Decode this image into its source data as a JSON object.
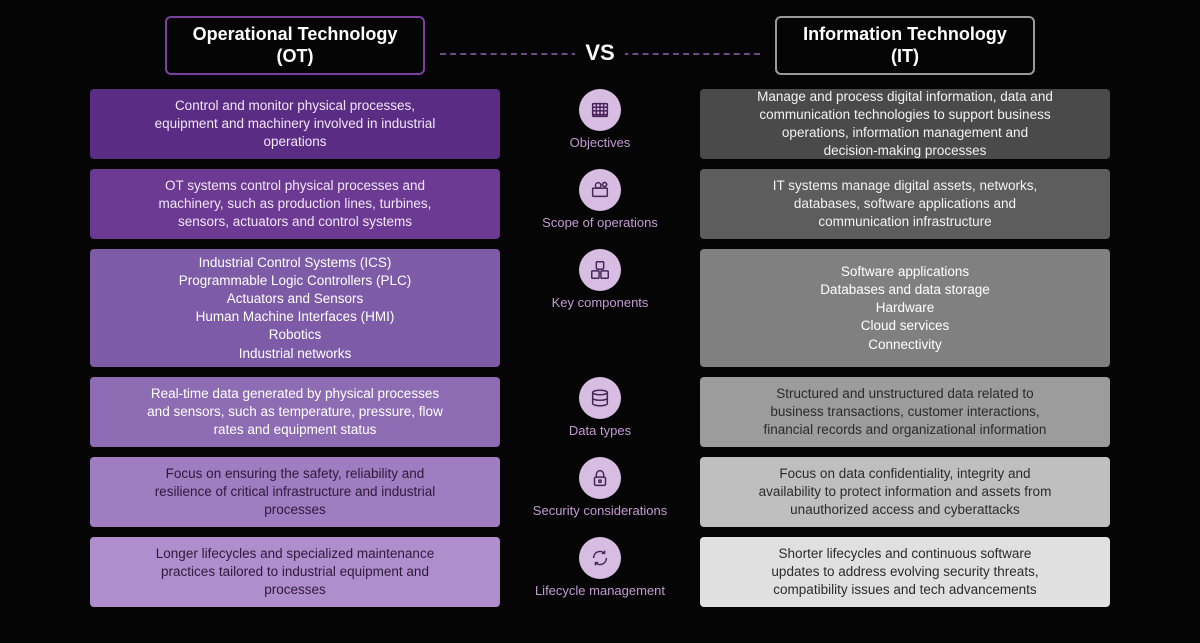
{
  "header": {
    "ot_title_l1": "Operational Technology",
    "ot_title_l2": "(OT)",
    "it_title_l1": "Information Technology",
    "it_title_l2": "(IT)",
    "vs": "VS"
  },
  "colors": {
    "background": "#050505",
    "accent_purple": "#c39bd3",
    "icon_bg": "#d7bde2",
    "icon_stroke": "#4a235a",
    "ot_border": "#7b3fa0",
    "it_border": "#9a9a9a",
    "ot_row_bg": [
      "#5b2c84",
      "#6c3a93",
      "#7d5ba6",
      "#8e6cb3",
      "#9f7dc0",
      "#b08ecd"
    ],
    "ot_row_text": [
      "#f0e6f6",
      "#f0e6f6",
      "#ffffff",
      "#ffffff",
      "#2e1a3a",
      "#2e1a3a"
    ],
    "it_row_bg": [
      "#4a4a4a",
      "#5d5d5d",
      "#808080",
      "#9c9c9c",
      "#bfbfbf",
      "#e0e0e0"
    ],
    "it_row_text": [
      "#f2f2f2",
      "#f2f2f2",
      "#ffffff",
      "#2b2b2b",
      "#2b2b2b",
      "#2b2b2b"
    ]
  },
  "rows": [
    {
      "label": "Objectives",
      "icon": "grid",
      "ot": [
        "Control and monitor physical processes,",
        "equipment and machinery involved in industrial",
        "operations"
      ],
      "it": [
        "Manage and process digital information, data and",
        "communication technologies to support business",
        "operations, information management and",
        "decision-making processes"
      ]
    },
    {
      "label": "Scope of operations",
      "icon": "gear-box",
      "ot": [
        "OT systems control physical processes and",
        "machinery, such as production lines, turbines,",
        "sensors, actuators and control systems"
      ],
      "it": [
        "IT systems manage digital assets, networks,",
        "databases, software applications and",
        "communication infrastructure"
      ]
    },
    {
      "label": "Key components",
      "icon": "blocks",
      "ot": [
        "Industrial Control Systems (ICS)",
        "Programmable Logic Controllers (PLC)",
        "Actuators and Sensors",
        "Human Machine Interfaces (HMI)",
        "Robotics",
        "Industrial networks"
      ],
      "it": [
        "Software applications",
        "Databases and data storage",
        "Hardware",
        "Cloud services",
        "Connectivity"
      ]
    },
    {
      "label": "Data types",
      "icon": "stack",
      "ot": [
        "Real-time data generated by physical processes",
        "and sensors, such as temperature, pressure, flow",
        "rates and equipment status"
      ],
      "it": [
        "Structured and unstructured data related to",
        "business transactions, customer interactions,",
        "financial records and organizational information"
      ]
    },
    {
      "label": "Security considerations",
      "icon": "lock",
      "ot": [
        "Focus on ensuring the safety, reliability and",
        "resilience of critical infrastructure and industrial",
        "processes"
      ],
      "it": [
        "Focus on data confidentiality, integrity and",
        "availability to protect information and assets from",
        "unauthorized access and cyberattacks"
      ]
    },
    {
      "label": "Lifecycle management",
      "icon": "cycle",
      "ot": [
        "Longer lifecycles and specialized maintenance",
        "practices tailored to industrial equipment and",
        "processes"
      ],
      "it": [
        "Shorter lifecycles and continuous software",
        "updates to address evolving security threats,",
        "compatibility issues and tech advancements"
      ]
    }
  ]
}
